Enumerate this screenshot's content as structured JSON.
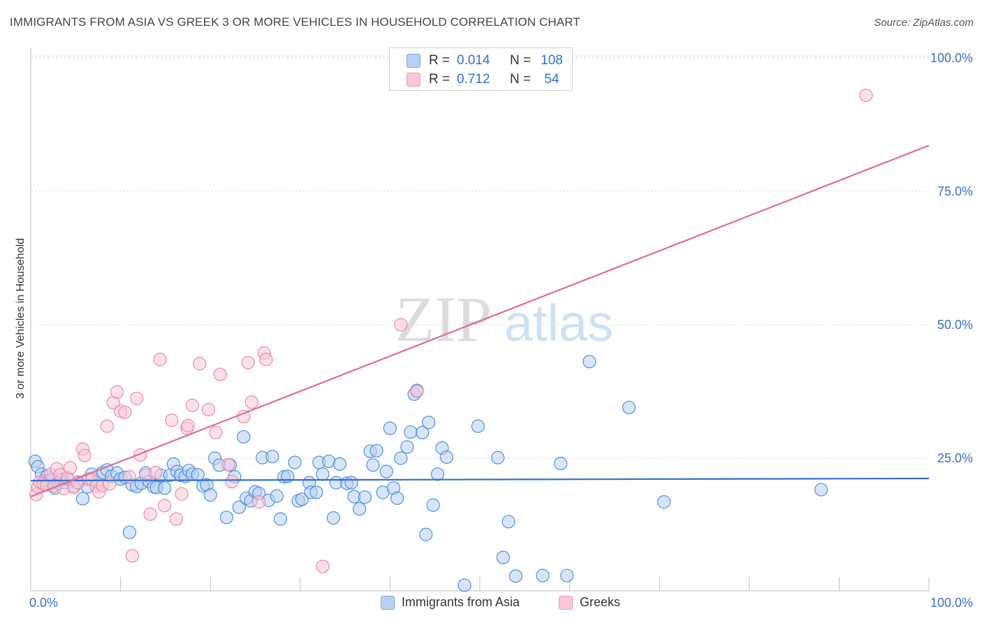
{
  "title": "IMMIGRANTS FROM ASIA VS GREEK 3 OR MORE VEHICLES IN HOUSEHOLD CORRELATION CHART",
  "source": "Source: ZipAtlas.com",
  "watermark": {
    "zip": "ZIP",
    "atlas": "atlas"
  },
  "colors": {
    "blue": "#4f8fdc",
    "blue_fill": "#b8d0f4",
    "blue_line": "#2f6fd6",
    "pink": "#e88aaa",
    "pink_fill": "#f9c8d8",
    "pink_line": "#e06a94",
    "tick_text": "#3a6fc8"
  },
  "legend_top": [
    {
      "r_label": "R =",
      "r_value": "0.014",
      "n_label": "N =",
      "n_value": "108"
    },
    {
      "r_label": "R =",
      "r_value": "0.712",
      "n_label": "N =",
      "n_value": "54"
    }
  ],
  "legend_bottom": [
    "Immigrants from Asia",
    "Greeks"
  ],
  "chart_data": {
    "type": "scatter",
    "title": "IMMIGRANTS FROM ASIA VS GREEK 3 OR MORE VEHICLES IN HOUSEHOLD CORRELATION CHART",
    "xlabel": "",
    "ylabel": "3 or more Vehicles in Household",
    "xlim": [
      0,
      100
    ],
    "ylim": [
      0,
      100
    ],
    "x_tick_labels": [
      "0.0%",
      "100.0%"
    ],
    "y_ticks": [
      25,
      50,
      75,
      100
    ],
    "y_tick_labels": [
      "25.0%",
      "50.0%",
      "75.0%",
      "100.0%"
    ],
    "grid": true,
    "series": [
      {
        "name": "Immigrants from Asia",
        "r": 0.014,
        "n": 108,
        "trend": {
          "x": [
            0,
            100
          ],
          "y": [
            20.8,
            21.2
          ]
        },
        "points": [
          [
            0.5,
            24.4
          ],
          [
            0.8,
            23.4
          ],
          [
            1.2,
            22.0
          ],
          [
            1.5,
            20.8
          ],
          [
            1.8,
            21.6
          ],
          [
            2.0,
            20.6
          ],
          [
            2.3,
            21.0
          ],
          [
            2.7,
            19.4
          ],
          [
            3.0,
            20.3
          ],
          [
            3.4,
            20.9
          ],
          [
            3.8,
            20.4
          ],
          [
            4.2,
            21.0
          ],
          [
            4.8,
            19.8
          ],
          [
            5.3,
            20.5
          ],
          [
            5.8,
            17.4
          ],
          [
            6.3,
            19.6
          ],
          [
            6.8,
            22.0
          ],
          [
            7.4,
            20.5
          ],
          [
            8.0,
            22.3
          ],
          [
            8.5,
            22.8
          ],
          [
            9.0,
            21.6
          ],
          [
            9.6,
            22.2
          ],
          [
            10.0,
            21.1
          ],
          [
            10.5,
            21.4
          ],
          [
            11.0,
            11.1
          ],
          [
            11.3,
            20.0
          ],
          [
            11.8,
            19.7
          ],
          [
            12.3,
            20.3
          ],
          [
            12.8,
            22.2
          ],
          [
            13.2,
            20.6
          ],
          [
            13.7,
            19.6
          ],
          [
            14.0,
            19.5
          ],
          [
            14.5,
            21.8
          ],
          [
            14.9,
            19.4
          ],
          [
            15.5,
            21.8
          ],
          [
            15.9,
            23.9
          ],
          [
            16.3,
            22.5
          ],
          [
            16.7,
            21.8
          ],
          [
            17.2,
            21.6
          ],
          [
            17.6,
            22.7
          ],
          [
            18.0,
            22.0
          ],
          [
            18.6,
            21.9
          ],
          [
            19.2,
            19.8
          ],
          [
            19.6,
            20.0
          ],
          [
            20.0,
            18.1
          ],
          [
            20.5,
            25.0
          ],
          [
            21.0,
            23.7
          ],
          [
            21.8,
            13.9
          ],
          [
            22.2,
            23.7
          ],
          [
            22.7,
            21.5
          ],
          [
            23.2,
            15.8
          ],
          [
            23.7,
            29.0
          ],
          [
            24.0,
            17.5
          ],
          [
            24.5,
            17.0
          ],
          [
            25.0,
            18.7
          ],
          [
            25.4,
            18.4
          ],
          [
            25.8,
            25.1
          ],
          [
            26.5,
            17.1
          ],
          [
            26.9,
            25.3
          ],
          [
            27.4,
            17.9
          ],
          [
            27.8,
            13.6
          ],
          [
            28.2,
            21.5
          ],
          [
            28.6,
            21.6
          ],
          [
            29.4,
            24.2
          ],
          [
            29.8,
            17.0
          ],
          [
            30.2,
            17.3
          ],
          [
            31.0,
            20.4
          ],
          [
            31.2,
            18.6
          ],
          [
            31.8,
            18.6
          ],
          [
            32.1,
            24.2
          ],
          [
            32.5,
            22.0
          ],
          [
            33.2,
            24.4
          ],
          [
            33.7,
            13.8
          ],
          [
            34.0,
            20.4
          ],
          [
            34.4,
            23.9
          ],
          [
            35.2,
            20.3
          ],
          [
            35.7,
            20.4
          ],
          [
            36.0,
            17.8
          ],
          [
            36.6,
            15.5
          ],
          [
            37.2,
            17.7
          ],
          [
            37.8,
            26.3
          ],
          [
            38.1,
            23.7
          ],
          [
            38.5,
            26.4
          ],
          [
            39.2,
            18.6
          ],
          [
            39.6,
            22.5
          ],
          [
            40.0,
            30.6
          ],
          [
            40.4,
            19.4
          ],
          [
            40.8,
            17.5
          ],
          [
            41.2,
            25.0
          ],
          [
            41.9,
            27.1
          ],
          [
            42.3,
            29.9
          ],
          [
            42.7,
            37.0
          ],
          [
            43.0,
            37.7
          ],
          [
            43.6,
            29.8
          ],
          [
            44.0,
            10.7
          ],
          [
            44.3,
            31.7
          ],
          [
            44.8,
            16.2
          ],
          [
            45.3,
            22.0
          ],
          [
            45.8,
            26.9
          ],
          [
            46.3,
            25.2
          ],
          [
            48.3,
            1.2
          ],
          [
            49.8,
            31.0
          ],
          [
            52.0,
            25.1
          ],
          [
            52.6,
            6.4
          ],
          [
            53.2,
            13.1
          ],
          [
            54.0,
            2.9
          ],
          [
            57.0,
            3.0
          ],
          [
            59.0,
            24.0
          ],
          [
            59.7,
            3.0
          ],
          [
            62.2,
            43.1
          ],
          [
            66.6,
            34.5
          ],
          [
            70.5,
            16.8
          ],
          [
            88.0,
            19.1
          ]
        ]
      },
      {
        "name": "Greeks",
        "r": 0.712,
        "n": 54,
        "trend": {
          "x": [
            0,
            100
          ],
          "y": [
            17.8,
            83.6
          ]
        },
        "points": [
          [
            0.6,
            18.2
          ],
          [
            0.8,
            19.6
          ],
          [
            1.0,
            20.5
          ],
          [
            1.4,
            20.2
          ],
          [
            1.8,
            20.0
          ],
          [
            2.2,
            22.0
          ],
          [
            2.6,
            19.8
          ],
          [
            2.9,
            23.0
          ],
          [
            3.3,
            21.9
          ],
          [
            3.7,
            19.3
          ],
          [
            4.1,
            21.3
          ],
          [
            4.4,
            23.2
          ],
          [
            4.8,
            19.5
          ],
          [
            5.2,
            20.4
          ],
          [
            5.8,
            26.7
          ],
          [
            6.0,
            25.5
          ],
          [
            6.4,
            21.1
          ],
          [
            6.8,
            21.0
          ],
          [
            7.3,
            19.8
          ],
          [
            7.6,
            18.7
          ],
          [
            8.0,
            19.9
          ],
          [
            8.5,
            31.0
          ],
          [
            8.8,
            20.2
          ],
          [
            9.2,
            35.4
          ],
          [
            9.6,
            37.4
          ],
          [
            10.0,
            33.8
          ],
          [
            10.5,
            33.6
          ],
          [
            11.0,
            21.5
          ],
          [
            11.3,
            6.7
          ],
          [
            11.8,
            36.2
          ],
          [
            12.2,
            25.6
          ],
          [
            12.8,
            21.8
          ],
          [
            13.3,
            14.5
          ],
          [
            13.9,
            22.3
          ],
          [
            14.4,
            43.5
          ],
          [
            14.9,
            16.1
          ],
          [
            15.7,
            32.1
          ],
          [
            16.2,
            13.6
          ],
          [
            16.8,
            18.3
          ],
          [
            17.4,
            30.6
          ],
          [
            17.5,
            31.1
          ],
          [
            18.0,
            34.9
          ],
          [
            18.8,
            42.7
          ],
          [
            19.8,
            34.1
          ],
          [
            20.6,
            29.8
          ],
          [
            21.1,
            40.7
          ],
          [
            22.0,
            23.8
          ],
          [
            22.4,
            20.6
          ],
          [
            23.7,
            32.8
          ],
          [
            24.2,
            42.9
          ],
          [
            24.6,
            35.5
          ],
          [
            25.4,
            16.8
          ],
          [
            26.0,
            44.7
          ],
          [
            26.2,
            43.5
          ],
          [
            32.5,
            4.7
          ],
          [
            41.2,
            50.0
          ],
          [
            43.0,
            37.5
          ],
          [
            93.0,
            93.0
          ]
        ]
      }
    ]
  }
}
